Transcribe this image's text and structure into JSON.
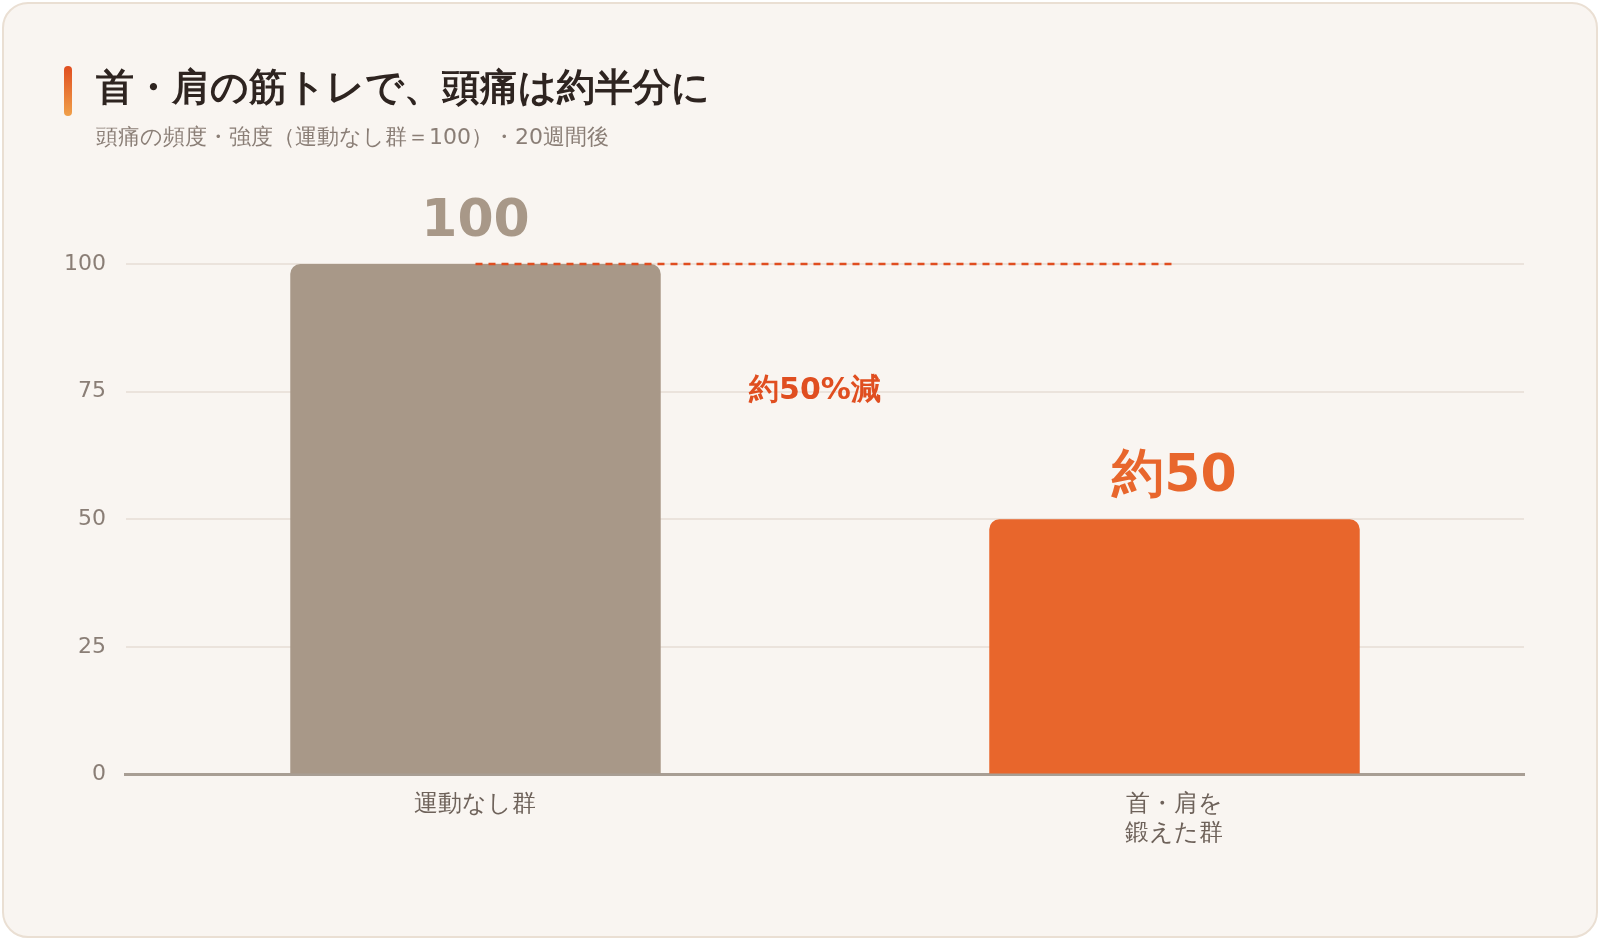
{
  "chart_data": {
    "type": "bar",
    "title": "首・肩の筋トレで、頭痛は約半分に",
    "subtitle": "頭痛の頻度・強度（運動なし群＝100）・20週間後",
    "categories": [
      "運動なし群",
      "首・肩を鍛えた群"
    ],
    "values": [
      100,
      50
    ],
    "colors": [
      "#a89888",
      "#e8662c"
    ],
    "value_labels": [
      "100",
      "約50"
    ],
    "ylim": [
      0,
      100
    ],
    "yticks": [
      0,
      25,
      50,
      75,
      100
    ],
    "grid": "y",
    "legend": false,
    "ref_lines": [
      {
        "axis": "y",
        "value": 100,
        "label": null,
        "color": "#e04e20",
        "line_style": "dashed"
      }
    ],
    "annotations": [
      "約50%減"
    ]
  }
}
